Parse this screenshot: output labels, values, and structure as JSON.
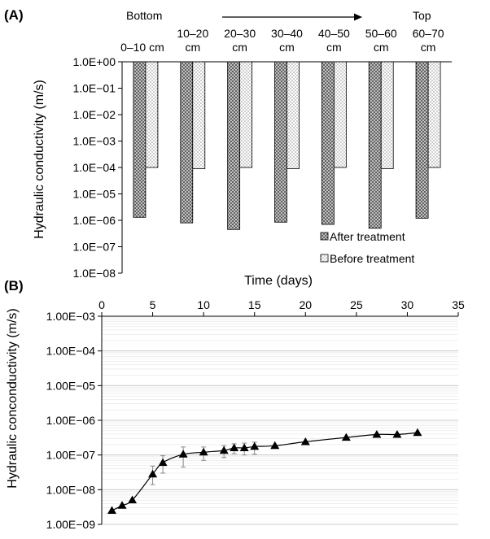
{
  "panel_a": {
    "label": "(A)",
    "bottom_label": "Bottom",
    "top_label": "Top"
  },
  "panel_b": {
    "label": "(B)"
  },
  "colors": {
    "after_fill": "#4a4a4a",
    "before_fill": "#ffffff",
    "line": "#000000",
    "grid": "#cccccc",
    "error_bar": "#888888"
  },
  "chart_data": [
    {
      "type": "bar",
      "title": "",
      "xlabel": "",
      "ylabel": "Hydraulic conductivity (m/s)",
      "y_scale": "log",
      "ylim": [
        1e-08,
        1
      ],
      "y_ticks": [
        "1.0E+00",
        "1.0E−01",
        "1.0E−02",
        "1.0E−03",
        "1.0E−04",
        "1.0E−05",
        "1.0E−06",
        "1.0E−07",
        "1.0E−08"
      ],
      "categories": [
        [
          "0–10 cm"
        ],
        [
          "10–20",
          "cm"
        ],
        [
          "20–30",
          "cm"
        ],
        [
          "30–40",
          "cm"
        ],
        [
          "40–50",
          "cm"
        ],
        [
          "50–60",
          "cm"
        ],
        [
          "60–70",
          "cm"
        ]
      ],
      "series": [
        {
          "name": "After treatment",
          "values": [
            1.3e-06,
            8e-07,
            4.5e-07,
            8.5e-07,
            7e-07,
            5e-07,
            1.2e-06
          ]
        },
        {
          "name": "Before treatment",
          "values": [
            0.0001,
            9e-05,
            0.0001,
            9e-05,
            0.0001,
            9e-05,
            0.0001
          ]
        }
      ],
      "bar_direction": "down",
      "legend_position": "bottom-right"
    },
    {
      "type": "line",
      "title": "",
      "xlabel": "Time (days)",
      "ylabel": "Hydraulic conconductivity (m/s)",
      "y_scale": "log",
      "xlim": [
        0,
        35
      ],
      "ylim": [
        1e-09,
        0.001
      ],
      "x_ticks": [
        "0",
        "5",
        "10",
        "15",
        "20",
        "25",
        "30",
        "35"
      ],
      "y_ticks": [
        "1.00E−03",
        "1.00E−04",
        "1.00E−05",
        "1.00E−06",
        "1.00E−07",
        "1.00E−08",
        "1.00E−09"
      ],
      "grid": true,
      "x_axis_position": "top",
      "marker": "triangle",
      "series": [
        {
          "x": [
            1,
            2,
            3,
            5,
            6,
            8,
            10,
            12,
            13,
            14,
            15,
            17,
            20,
            24,
            27,
            29,
            31
          ],
          "y": [
            2.5e-09,
            3.5e-09,
            5e-09,
            2.8e-08,
            6e-08,
            1.05e-07,
            1.2e-07,
            1.35e-07,
            1.6e-07,
            1.6e-07,
            1.75e-07,
            1.85e-07,
            2.4e-07,
            3.2e-07,
            3.9e-07,
            3.9e-07,
            4.4e-07
          ],
          "err_low": [
            0,
            0,
            0,
            1.4e-08,
            3e-08,
            6e-08,
            5e-08,
            5e-08,
            5e-08,
            6e-08,
            7e-08,
            0,
            0,
            0,
            0,
            0,
            0
          ],
          "err_high": [
            0,
            0,
            0,
            2e-08,
            3.5e-08,
            6.5e-08,
            5e-08,
            5e-08,
            5e-08,
            6e-08,
            6e-08,
            0,
            0,
            0,
            0,
            0,
            0
          ]
        }
      ]
    }
  ]
}
